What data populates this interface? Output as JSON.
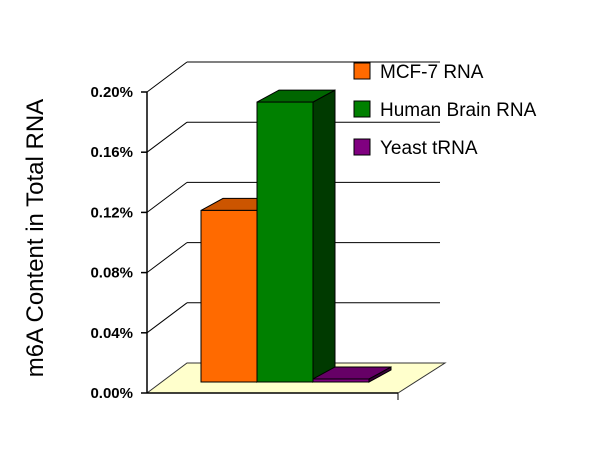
{
  "chart_data": {
    "type": "bar",
    "title": "",
    "ylabel": "m6A Content in Total RNA",
    "xlabel": "",
    "ylim": [
      0,
      0.2
    ],
    "y_ticks": [
      "0.00%",
      "0.04%",
      "0.08%",
      "0.12%",
      "0.16%",
      "0.20%"
    ],
    "y_tick_values": [
      0,
      0.04,
      0.08,
      0.12,
      0.16,
      0.2
    ],
    "grid": true,
    "legend_position": "top-right",
    "series": [
      {
        "name": "MCF-7 RNA",
        "value": 0.114,
        "color": "#ff6a00"
      },
      {
        "name": "Human Brain RNA",
        "value": 0.186,
        "color": "#008000"
      },
      {
        "name": "Yeast tRNA",
        "value": 0.002,
        "color": "#800080"
      }
    ],
    "floor_color": "#ffffcc"
  }
}
